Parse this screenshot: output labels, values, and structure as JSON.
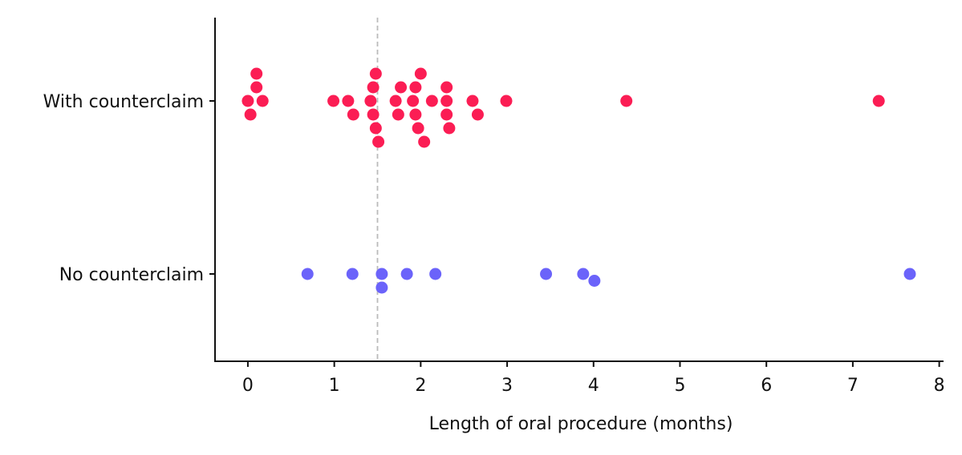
{
  "chart_data": {
    "type": "scatter",
    "title": "",
    "xlabel": "Length of oral procedure (months)",
    "ylabel": "",
    "xlim": [
      -0.38,
      8.05
    ],
    "xticks": [
      0,
      1,
      2,
      3,
      4,
      5,
      6,
      7,
      8
    ],
    "grid": false,
    "categories": [
      "With counterclaim",
      "No counterclaim"
    ],
    "reference_line": {
      "x": 1.5,
      "style": "dashed",
      "color": "#bbbbbb"
    },
    "series": [
      {
        "category": "With counterclaim",
        "color": "#fb1d54",
        "points": [
          {
            "x": 0.1,
            "y": 2
          },
          {
            "x": 0.1,
            "y": 1
          },
          {
            "x": 0.0,
            "y": 0
          },
          {
            "x": 0.17,
            "y": 0
          },
          {
            "x": 0.03,
            "y": -1
          },
          {
            "x": 0.99,
            "y": 0
          },
          {
            "x": 1.16,
            "y": 0
          },
          {
            "x": 1.22,
            "y": -1
          },
          {
            "x": 1.48,
            "y": 2
          },
          {
            "x": 1.45,
            "y": 1
          },
          {
            "x": 1.42,
            "y": 0
          },
          {
            "x": 1.45,
            "y": -1
          },
          {
            "x": 1.48,
            "y": -2
          },
          {
            "x": 1.51,
            "y": -3
          },
          {
            "x": 1.77,
            "y": 1
          },
          {
            "x": 1.71,
            "y": 0
          },
          {
            "x": 1.74,
            "y": -1
          },
          {
            "x": 2.0,
            "y": 2
          },
          {
            "x": 1.94,
            "y": 1
          },
          {
            "x": 1.91,
            "y": 0
          },
          {
            "x": 1.94,
            "y": -1
          },
          {
            "x": 1.97,
            "y": -2
          },
          {
            "x": 2.04,
            "y": -3
          },
          {
            "x": 2.13,
            "y": 0
          },
          {
            "x": 2.3,
            "y": 1
          },
          {
            "x": 2.3,
            "y": 0
          },
          {
            "x": 2.3,
            "y": -1
          },
          {
            "x": 2.33,
            "y": -2
          },
          {
            "x": 2.6,
            "y": 0
          },
          {
            "x": 2.66,
            "y": -1
          },
          {
            "x": 2.99,
            "y": 0
          },
          {
            "x": 4.38,
            "y": 0
          },
          {
            "x": 7.3,
            "y": 0
          }
        ]
      },
      {
        "category": "No counterclaim",
        "color": "#6b63fa",
        "points": [
          {
            "x": 0.69,
            "y": 0
          },
          {
            "x": 1.21,
            "y": 0
          },
          {
            "x": 1.55,
            "y": 0
          },
          {
            "x": 1.55,
            "y": -1
          },
          {
            "x": 1.84,
            "y": 0
          },
          {
            "x": 2.17,
            "y": 0
          },
          {
            "x": 3.45,
            "y": 0
          },
          {
            "x": 3.88,
            "y": 0
          },
          {
            "x": 4.01,
            "y": -0.5
          },
          {
            "x": 7.66,
            "y": 0
          }
        ]
      }
    ]
  }
}
